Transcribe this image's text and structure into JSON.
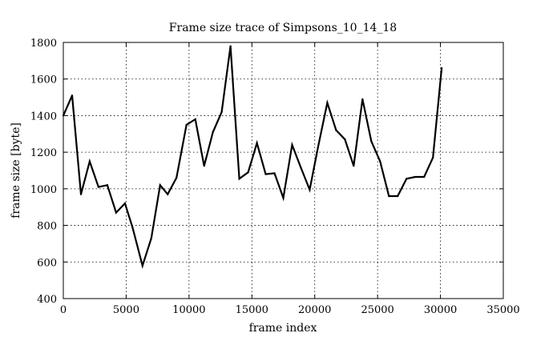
{
  "chart_data": {
    "type": "line",
    "title": "Frame size trace of Simpsons_10_14_18",
    "xlabel": "frame index",
    "ylabel": "frame size [byte]",
    "xlim": [
      0,
      35000
    ],
    "ylim": [
      400,
      1800
    ],
    "xticks": [
      0,
      5000,
      10000,
      15000,
      20000,
      25000,
      30000,
      35000
    ],
    "yticks": [
      400,
      600,
      800,
      1000,
      1200,
      1400,
      1600,
      1800
    ],
    "grid": true,
    "series": [
      {
        "x": [
          0,
          700,
          1400,
          2100,
          2800,
          3500,
          4200,
          4900,
          5500,
          6300,
          7000,
          7700,
          8300,
          9000,
          9800,
          10500,
          11200,
          11900,
          12600,
          13300,
          14000,
          14700,
          15400,
          16100,
          16800,
          17500,
          18200,
          18900,
          19600,
          20300,
          21000,
          21700,
          22400,
          23100,
          23800,
          24500,
          25200,
          25900,
          26600,
          27300,
          28000,
          28700,
          29400,
          30100
        ],
        "y": [
          1400,
          1510,
          970,
          1150,
          1010,
          1020,
          870,
          920,
          790,
          580,
          730,
          1020,
          970,
          1060,
          1350,
          1380,
          1125,
          1310,
          1420,
          1780,
          1055,
          1090,
          1250,
          1080,
          1085,
          950,
          1240,
          1115,
          995,
          1240,
          1470,
          1320,
          1270,
          1125,
          1490,
          1260,
          1150,
          960,
          960,
          1055,
          1065,
          1065,
          1170,
          1660
        ]
      }
    ]
  }
}
